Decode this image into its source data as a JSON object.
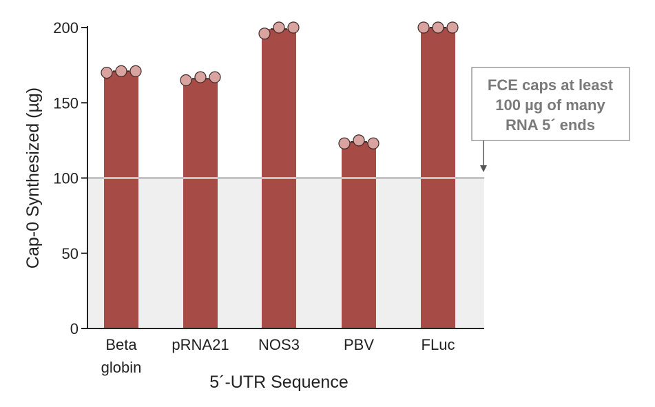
{
  "chart_data": {
    "type": "bar",
    "categories": [
      [
        "Beta",
        "globin"
      ],
      [
        "pRNA21"
      ],
      [
        "NOS3"
      ],
      [
        "PBV"
      ],
      [
        "FLuc"
      ]
    ],
    "values": [
      171,
      166,
      199,
      124,
      200
    ],
    "points": [
      [
        170,
        171,
        171
      ],
      [
        165,
        167,
        167
      ],
      [
        196,
        200,
        200
      ],
      [
        123,
        125,
        123
      ],
      [
        200,
        200,
        200
      ]
    ],
    "xlabel": "5´-UTR Sequence",
    "ylabel": "Cap-0 Synthesized (µg)",
    "ylim": [
      0,
      200
    ],
    "yticks": [
      0,
      50,
      100,
      150,
      200
    ],
    "threshold": 100,
    "annotation": [
      "FCE caps at least",
      "100 µg of many",
      "RNA 5´ ends"
    ],
    "colors": {
      "bar": "#a64b46",
      "point_fill": "#d9a39f",
      "point_stroke": "#3a2a28",
      "threshold_line": "#c4c4c4",
      "threshold_region": "#efefef",
      "callout_border": "#9a9a9a",
      "callout_text": "#7a7a7a"
    },
    "grid": false,
    "legend": "none"
  }
}
